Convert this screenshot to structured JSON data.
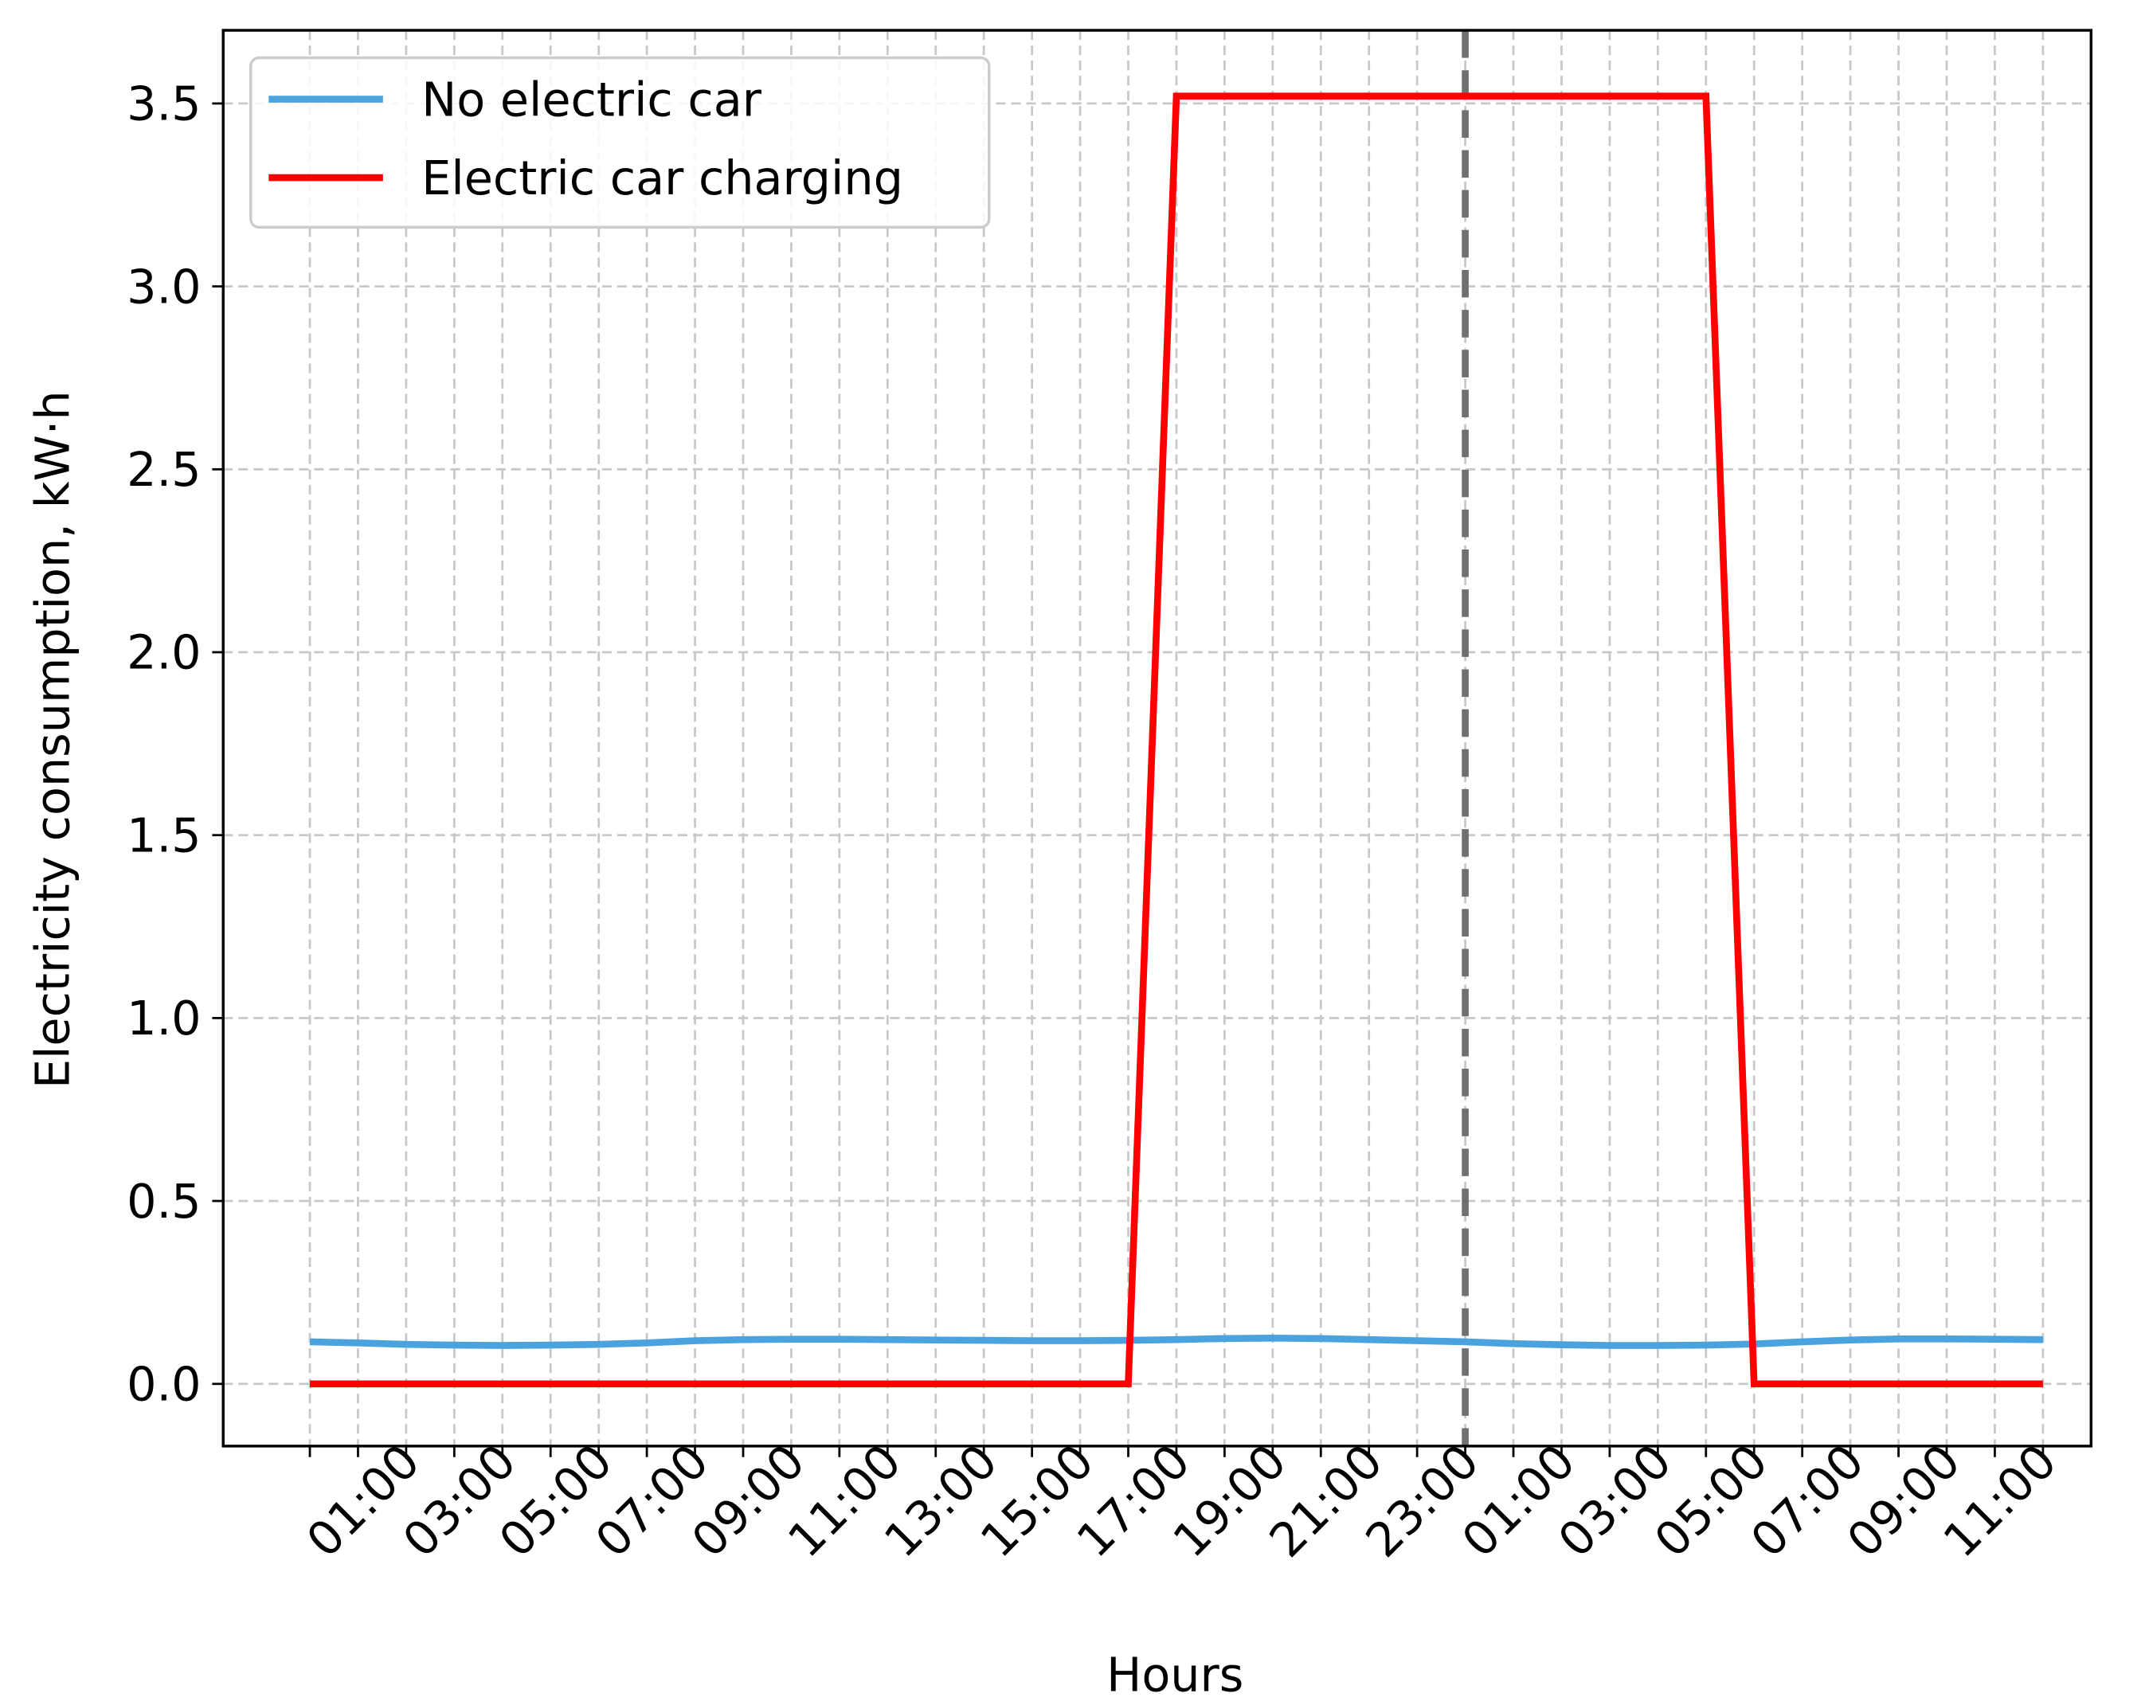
{
  "chart_data": {
    "type": "line",
    "xlabel": "Hours",
    "ylabel": "Electricity consumption, kW·h",
    "categories": [
      null,
      "01:00",
      null,
      "03:00",
      null,
      "05:00",
      null,
      "07:00",
      null,
      "09:00",
      null,
      "11:00",
      null,
      "13:00",
      null,
      "15:00",
      null,
      "17:00",
      null,
      "19:00",
      null,
      "21:00",
      null,
      "23:00",
      null,
      "01:00",
      null,
      "03:00",
      null,
      "05:00",
      null,
      "07:00",
      null,
      "09:00",
      null,
      "11:00",
      null
    ],
    "series": [
      {
        "name": "No electric car",
        "color": "#4aa3df",
        "values": [
          0.115,
          0.112,
          0.108,
          0.106,
          0.105,
          0.106,
          0.108,
          0.112,
          0.118,
          0.121,
          0.122,
          0.122,
          0.121,
          0.12,
          0.119,
          0.118,
          0.118,
          0.119,
          0.121,
          0.124,
          0.125,
          0.124,
          0.121,
          0.118,
          0.115,
          0.11,
          0.107,
          0.105,
          0.105,
          0.106,
          0.109,
          0.115,
          0.12,
          0.123,
          0.123,
          0.122,
          0.121
        ]
      },
      {
        "name": "Electric car charging",
        "color": "#ff0000",
        "values": [
          0,
          0,
          0,
          0,
          0,
          0,
          0,
          0,
          0,
          0,
          0,
          0,
          0,
          0,
          0,
          0,
          0,
          0,
          3.52,
          3.52,
          3.52,
          3.52,
          3.52,
          3.52,
          3.52,
          3.52,
          3.52,
          3.52,
          3.52,
          3.52,
          0,
          0,
          0,
          0,
          0,
          0,
          0
        ]
      }
    ],
    "reference_line": {
      "x_index": 24,
      "color": "#707070"
    },
    "ylim": [
      -0.17,
      3.7
    ],
    "yticks": [
      {
        "value": 0,
        "label": "0.0"
      },
      0.5,
      {
        "value": 1,
        "label": "1.0"
      },
      1.5,
      {
        "value": 2,
        "label": "2.0"
      },
      2.5,
      {
        "value": 3,
        "label": "3.0"
      },
      3.5
    ],
    "grid": true,
    "legend": "upper left"
  }
}
